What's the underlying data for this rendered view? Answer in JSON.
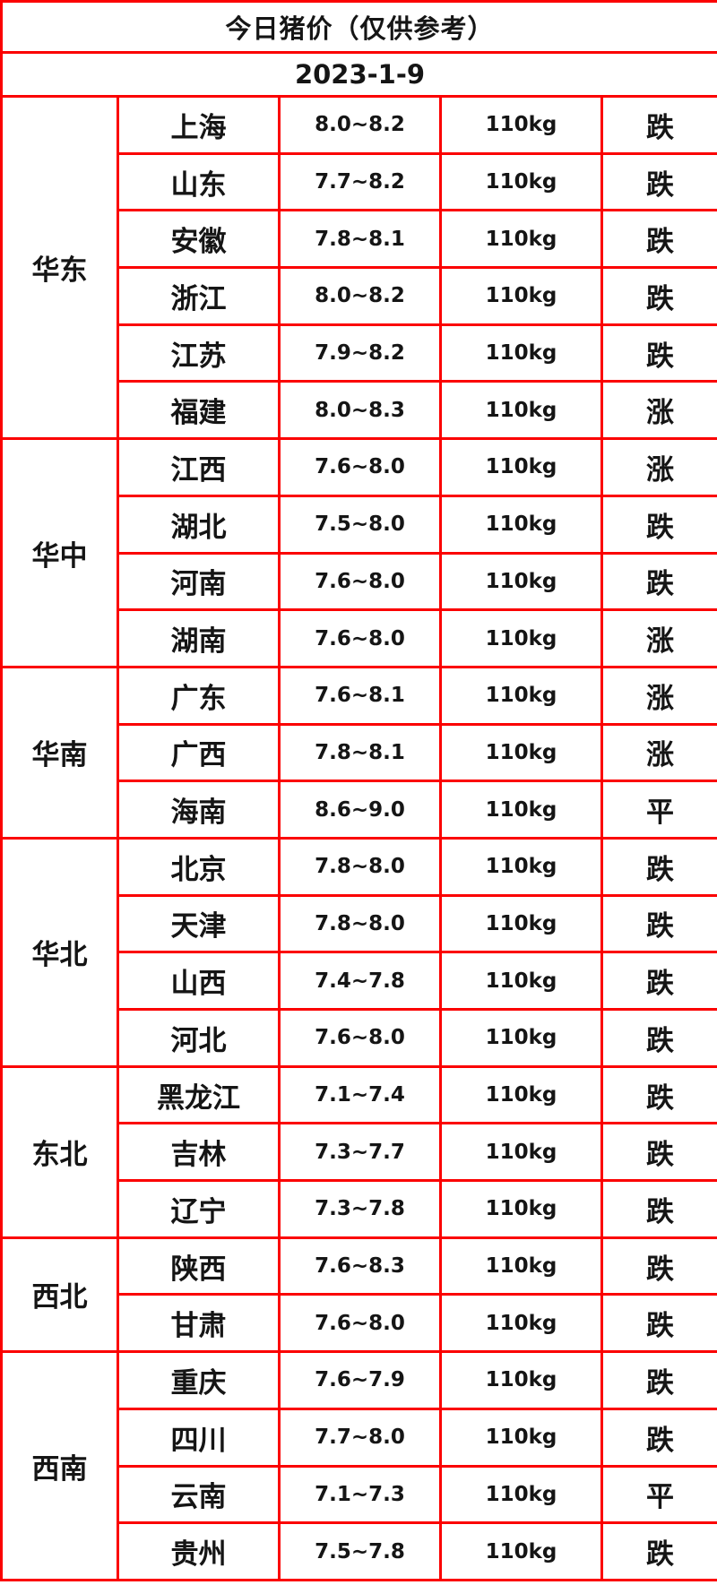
{
  "title": "今日猪价（仅供参考）",
  "date": "2023-1-9",
  "colors": {
    "header_bg": "#EC6611",
    "grid_red": "#FB0000",
    "text_black": "#151515",
    "trend_down_green": "#2FC52F",
    "trend_up_red": "#FB3C55",
    "cell_bg": "#FFFFFF"
  },
  "regions": [
    {
      "name": "华东",
      "rows": [
        {
          "province": "上海",
          "price": "8.0~8.2",
          "weight": "110kg",
          "trend": "跌",
          "trend_type": "down"
        },
        {
          "province": "山东",
          "price": "7.7~8.2",
          "weight": "110kg",
          "trend": "跌",
          "trend_type": "down"
        },
        {
          "province": "安徽",
          "price": "7.8~8.1",
          "weight": "110kg",
          "trend": "跌",
          "trend_type": "down"
        },
        {
          "province": "浙江",
          "price": "8.0~8.2",
          "weight": "110kg",
          "trend": "跌",
          "trend_type": "down"
        },
        {
          "province": "江苏",
          "price": "7.9~8.2",
          "weight": "110kg",
          "trend": "跌",
          "trend_type": "down"
        },
        {
          "province": "福建",
          "price": "8.0~8.3",
          "weight": "110kg",
          "trend": "涨",
          "trend_type": "up"
        }
      ]
    },
    {
      "name": "华中",
      "rows": [
        {
          "province": "江西",
          "price": "7.6~8.0",
          "weight": "110kg",
          "trend": "涨",
          "trend_type": "up"
        },
        {
          "province": "湖北",
          "price": "7.5~8.0",
          "weight": "110kg",
          "trend": "跌",
          "trend_type": "down"
        },
        {
          "province": "河南",
          "price": "7.6~8.0",
          "weight": "110kg",
          "trend": "跌",
          "trend_type": "down"
        },
        {
          "province": "湖南",
          "price": "7.6~8.0",
          "weight": "110kg",
          "trend": "涨",
          "trend_type": "up"
        }
      ]
    },
    {
      "name": "华南",
      "rows": [
        {
          "province": "广东",
          "price": "7.6~8.1",
          "weight": "110kg",
          "trend": "涨",
          "trend_type": "up"
        },
        {
          "province": "广西",
          "price": "7.8~8.1",
          "weight": "110kg",
          "trend": "涨",
          "trend_type": "up"
        },
        {
          "province": "海南",
          "price": "8.6~9.0",
          "weight": "110kg",
          "trend": "平",
          "trend_type": "flat"
        }
      ]
    },
    {
      "name": "华北",
      "rows": [
        {
          "province": "北京",
          "price": "7.8~8.0",
          "weight": "110kg",
          "trend": "跌",
          "trend_type": "down"
        },
        {
          "province": "天津",
          "price": "7.8~8.0",
          "weight": "110kg",
          "trend": "跌",
          "trend_type": "down"
        },
        {
          "province": "山西",
          "price": "7.4~7.8",
          "weight": "110kg",
          "trend": "跌",
          "trend_type": "down"
        },
        {
          "province": "河北",
          "price": "7.6~8.0",
          "weight": "110kg",
          "trend": "跌",
          "trend_type": "down"
        }
      ]
    },
    {
      "name": "东北",
      "rows": [
        {
          "province": "黑龙江",
          "price": "7.1~7.4",
          "weight": "110kg",
          "trend": "跌",
          "trend_type": "down"
        },
        {
          "province": "吉林",
          "price": "7.3~7.7",
          "weight": "110kg",
          "trend": "跌",
          "trend_type": "down"
        },
        {
          "province": "辽宁",
          "price": "7.3~7.8",
          "weight": "110kg",
          "trend": "跌",
          "trend_type": "down"
        }
      ]
    },
    {
      "name": "西北",
      "rows": [
        {
          "province": "陕西",
          "price": "7.6~8.3",
          "weight": "110kg",
          "trend": "跌",
          "trend_type": "down"
        },
        {
          "province": "甘肃",
          "price": "7.6~8.0",
          "weight": "110kg",
          "trend": "跌",
          "trend_type": "down"
        }
      ]
    },
    {
      "name": "西南",
      "rows": [
        {
          "province": "重庆",
          "price": "7.6~7.9",
          "weight": "110kg",
          "trend": "跌",
          "trend_type": "down"
        },
        {
          "province": "四川",
          "price": "7.7~8.0",
          "weight": "110kg",
          "trend": "跌",
          "trend_type": "down"
        },
        {
          "province": "云南",
          "price": "7.1~7.3",
          "weight": "110kg",
          "trend": "平",
          "trend_type": "flat"
        },
        {
          "province": "贵州",
          "price": "7.5~7.8",
          "weight": "110kg",
          "trend": "跌",
          "trend_type": "down"
        }
      ]
    }
  ]
}
